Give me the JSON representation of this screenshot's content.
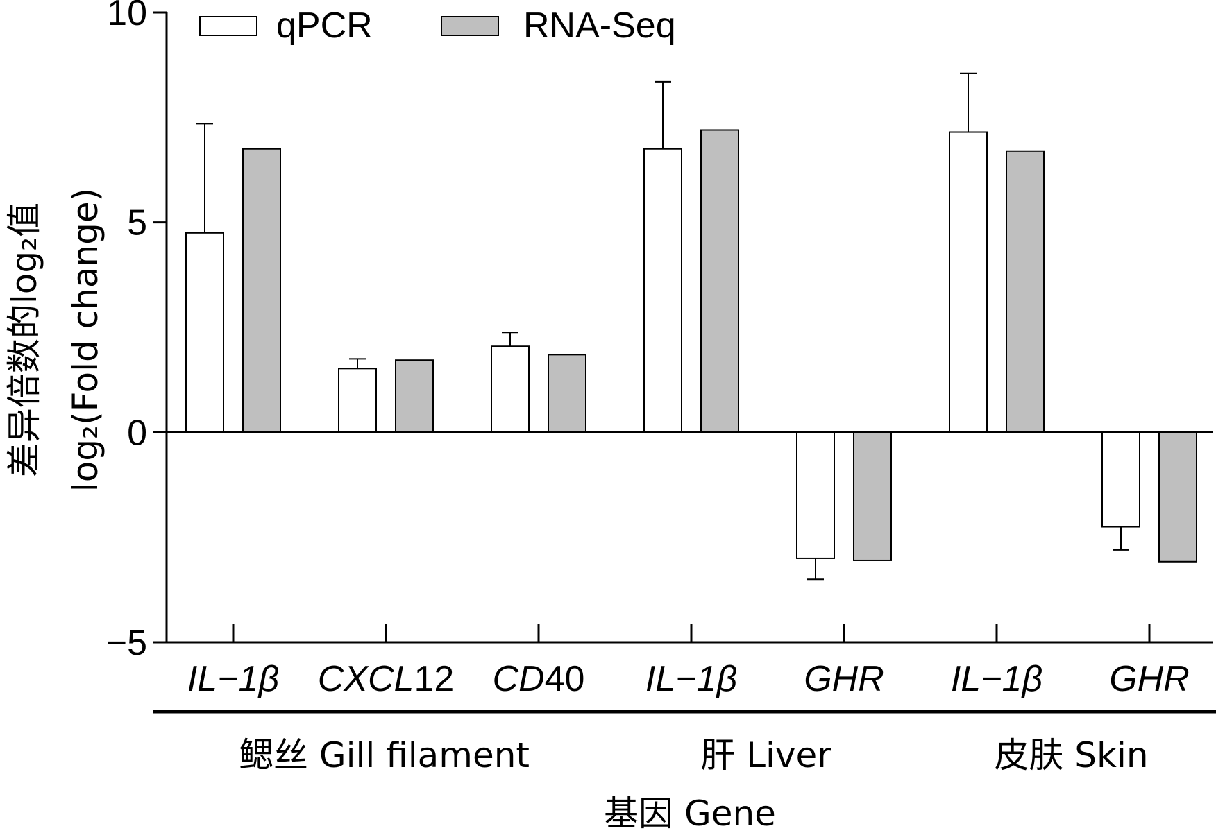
{
  "chart_data": {
    "type": "bar",
    "title": "",
    "xlabel": "基因 Gene",
    "ylabel_cn": "差异倍数的log₂值",
    "ylabel_en": "log₂(Fold change)",
    "ylim": [
      -5,
      10
    ],
    "yticks": [
      "−5",
      "0",
      "5",
      "10"
    ],
    "yticks_values": [
      -5,
      0,
      5,
      10
    ],
    "grid": false,
    "legend_position": "top-left",
    "categories": [
      {
        "prefix": "IL",
        "suffix": "−1β",
        "group": 0
      },
      {
        "prefix": "CXCL",
        "suffix": "12",
        "group": 0
      },
      {
        "prefix": "CD",
        "suffix": "40",
        "group": 0
      },
      {
        "prefix": "IL",
        "suffix": "−1β",
        "group": 1
      },
      {
        "prefix": "GHR",
        "suffix": "",
        "group": 1
      },
      {
        "prefix": "IL",
        "suffix": "−1β",
        "group": 2
      },
      {
        "prefix": "GHR",
        "suffix": "",
        "group": 2
      }
    ],
    "groups": [
      {
        "label": "鳃丝 Gill filament"
      },
      {
        "label": "肝 Liver"
      },
      {
        "label": "皮肤 Skin"
      }
    ],
    "series": [
      {
        "name": "qPCR",
        "color": "#ffffff",
        "values": [
          4.75,
          1.52,
          2.05,
          6.75,
          -3.0,
          7.15,
          -2.25
        ],
        "errors": [
          2.6,
          0.23,
          0.33,
          1.6,
          0.5,
          1.4,
          0.55
        ]
      },
      {
        "name": "RNA-Seq",
        "color": "#bfbfbf",
        "values": [
          6.75,
          1.72,
          1.85,
          7.2,
          -3.05,
          6.7,
          -3.08
        ],
        "errors": [
          0,
          0,
          0,
          0,
          0,
          0,
          0
        ]
      }
    ]
  }
}
